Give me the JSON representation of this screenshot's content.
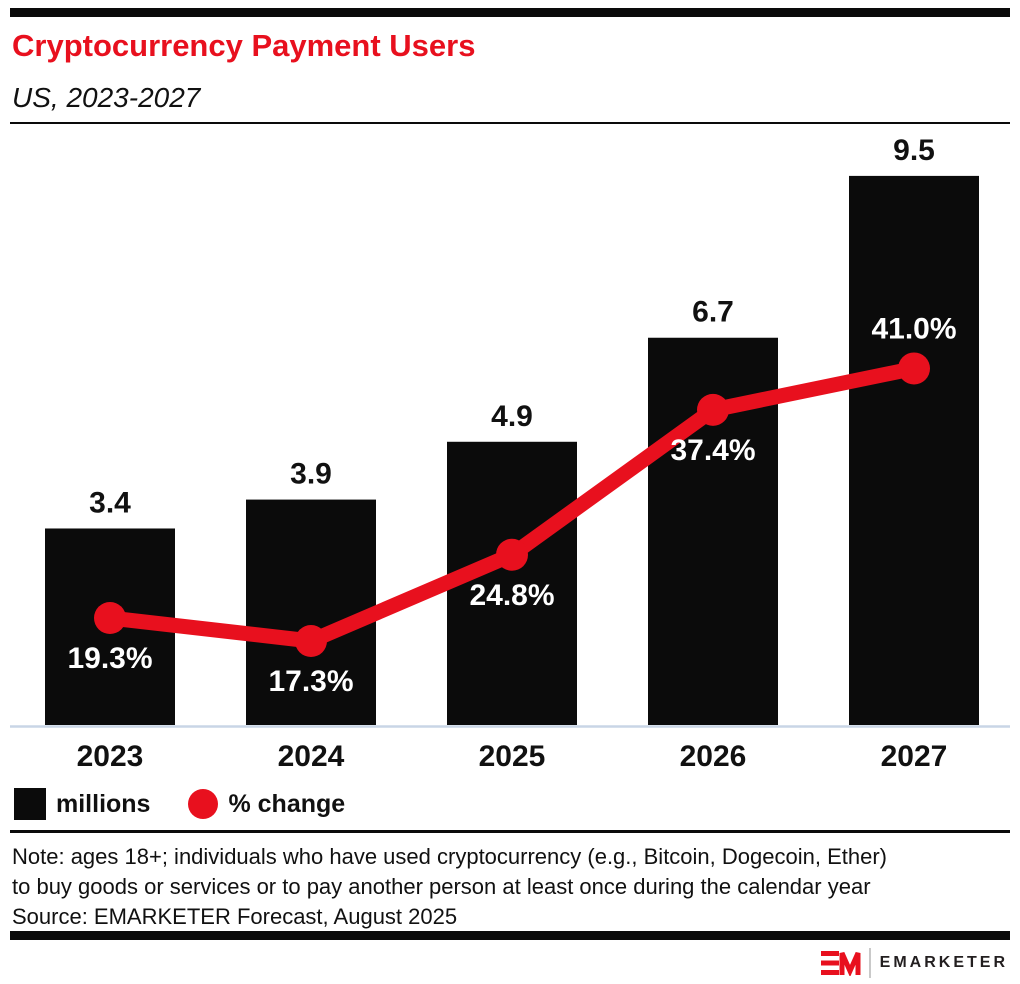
{
  "header": {
    "title": "Cryptocurrency Payment Users",
    "subtitle": "US, 2023-2027"
  },
  "chart_data": {
    "type": "bar",
    "subtype": "bar-line-combo",
    "title": "Cryptocurrency Payment Users",
    "subtitle": "US, 2023-2027",
    "categories": [
      "2023",
      "2024",
      "2025",
      "2026",
      "2027"
    ],
    "series": [
      {
        "name": "millions",
        "type": "bar",
        "color": "#0b0b0b",
        "values": [
          3.4,
          3.9,
          4.9,
          6.7,
          9.5
        ],
        "labels": [
          "3.4",
          "3.9",
          "4.9",
          "6.7",
          "9.5"
        ]
      },
      {
        "name": "% change",
        "type": "line",
        "color": "#e8101e",
        "values": [
          19.3,
          17.3,
          24.8,
          37.4,
          41.0
        ],
        "labels": [
          "19.3%",
          "17.3%",
          "24.8%",
          "37.4%",
          "41.0%"
        ],
        "label_positions": [
          "below",
          "below",
          "below",
          "below",
          "above"
        ]
      }
    ],
    "xlabel": "",
    "ylabel": "",
    "grid": false,
    "legend_position": "bottom-left",
    "bar_axis_min": 0
  },
  "legend": {
    "items": [
      {
        "label": "millions",
        "swatch": "square",
        "color": "#0b0b0b"
      },
      {
        "label": "% change",
        "swatch": "circle",
        "color": "#e8101e"
      }
    ]
  },
  "notes": {
    "line1": "Note: ages 18+; individuals who have used cryptocurrency (e.g., Bitcoin, Dogecoin, Ether)",
    "line2": "to buy goods or services or to pay another person at least once during the calendar year",
    "source": "Source: EMARKETER Forecast, August 2025"
  },
  "footer": {
    "brand": "EMARKETER"
  },
  "colors": {
    "accent_red": "#e8101e",
    "bar_black": "#0b0b0b",
    "axis_line": "#c9d5e6",
    "text": "#111111"
  }
}
